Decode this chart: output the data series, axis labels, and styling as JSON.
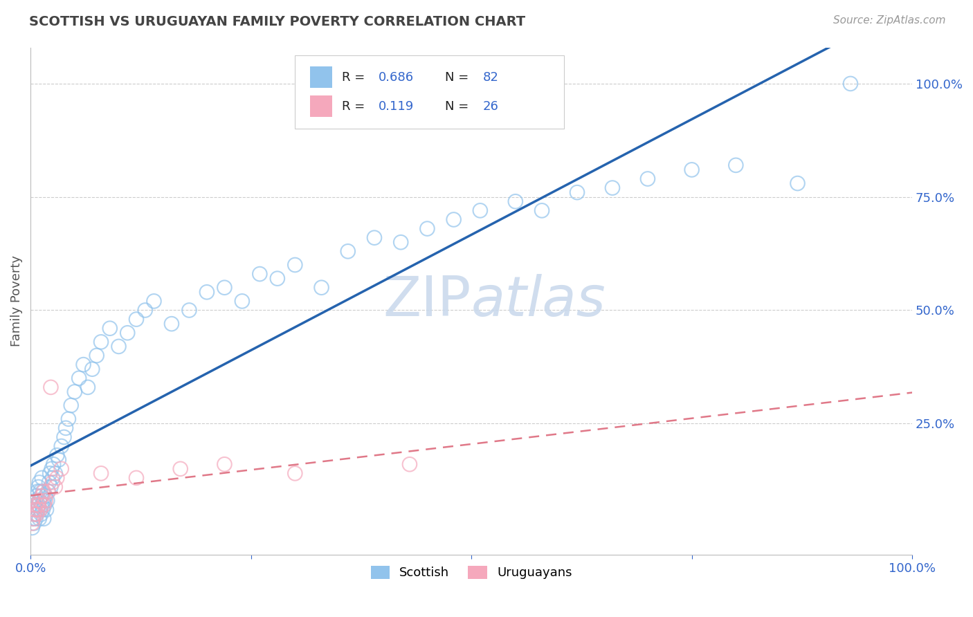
{
  "title": "SCOTTISH VS URUGUAYAN FAMILY POVERTY CORRELATION CHART",
  "source_text": "Source: ZipAtlas.com",
  "ylabel": "Family Poverty",
  "y_tick_labels": [
    "25.0%",
    "50.0%",
    "75.0%",
    "100.0%"
  ],
  "y_tick_values": [
    0.25,
    0.5,
    0.75,
    1.0
  ],
  "legend_label1": "R = 0.686   N = 82",
  "legend_label2": "R =  0.119   N = 26",
  "R_scottish": 0.686,
  "N_scottish": 82,
  "R_uruguayan": 0.119,
  "N_uruguayan": 26,
  "color_scottish": "#91C3EC",
  "color_uruguayan": "#F5A8BC",
  "line_color_scottish": "#2563AE",
  "line_color_uruguayan": "#E07888",
  "background_color": "#FFFFFF",
  "grid_color": "#CCCCCC",
  "title_color": "#444444",
  "watermark_color": "#C8D8EC",
  "scottish_x": [
    0.002,
    0.003,
    0.004,
    0.005,
    0.005,
    0.006,
    0.006,
    0.007,
    0.007,
    0.008,
    0.008,
    0.009,
    0.009,
    0.01,
    0.01,
    0.01,
    0.011,
    0.011,
    0.012,
    0.012,
    0.013,
    0.013,
    0.014,
    0.014,
    0.015,
    0.015,
    0.016,
    0.017,
    0.018,
    0.019,
    0.02,
    0.021,
    0.022,
    0.023,
    0.024,
    0.025,
    0.026,
    0.028,
    0.03,
    0.032,
    0.035,
    0.038,
    0.04,
    0.043,
    0.046,
    0.05,
    0.055,
    0.06,
    0.065,
    0.07,
    0.075,
    0.08,
    0.09,
    0.1,
    0.11,
    0.12,
    0.13,
    0.14,
    0.16,
    0.18,
    0.2,
    0.22,
    0.24,
    0.26,
    0.28,
    0.3,
    0.33,
    0.36,
    0.39,
    0.42,
    0.45,
    0.48,
    0.51,
    0.55,
    0.58,
    0.62,
    0.66,
    0.7,
    0.75,
    0.8,
    0.87,
    0.93
  ],
  "scottish_y": [
    0.02,
    0.04,
    0.03,
    0.05,
    0.07,
    0.04,
    0.08,
    0.05,
    0.09,
    0.06,
    0.1,
    0.07,
    0.11,
    0.04,
    0.08,
    0.12,
    0.06,
    0.1,
    0.05,
    0.09,
    0.07,
    0.13,
    0.06,
    0.1,
    0.04,
    0.08,
    0.07,
    0.09,
    0.06,
    0.08,
    0.1,
    0.12,
    0.14,
    0.11,
    0.15,
    0.13,
    0.16,
    0.14,
    0.18,
    0.17,
    0.2,
    0.22,
    0.24,
    0.26,
    0.29,
    0.32,
    0.35,
    0.38,
    0.33,
    0.37,
    0.4,
    0.43,
    0.46,
    0.42,
    0.45,
    0.48,
    0.5,
    0.52,
    0.47,
    0.5,
    0.54,
    0.55,
    0.52,
    0.58,
    0.57,
    0.6,
    0.55,
    0.63,
    0.66,
    0.65,
    0.68,
    0.7,
    0.72,
    0.74,
    0.72,
    0.76,
    0.77,
    0.79,
    0.81,
    0.82,
    0.78,
    1.0
  ],
  "uruguayan_x": [
    0.002,
    0.003,
    0.004,
    0.005,
    0.006,
    0.007,
    0.008,
    0.009,
    0.01,
    0.011,
    0.013,
    0.015,
    0.017,
    0.02,
    0.023,
    0.025,
    0.028,
    0.03,
    0.035,
    0.015,
    0.08,
    0.12,
    0.17,
    0.22,
    0.3,
    0.43
  ],
  "uruguayan_y": [
    0.03,
    0.04,
    0.05,
    0.06,
    0.07,
    0.05,
    0.06,
    0.07,
    0.08,
    0.06,
    0.09,
    0.07,
    0.08,
    0.1,
    0.33,
    0.12,
    0.11,
    0.13,
    0.15,
    0.1,
    0.14,
    0.13,
    0.15,
    0.16,
    0.14,
    0.16
  ],
  "xlim": [
    0.0,
    1.0
  ],
  "ylim": [
    -0.04,
    1.08
  ]
}
